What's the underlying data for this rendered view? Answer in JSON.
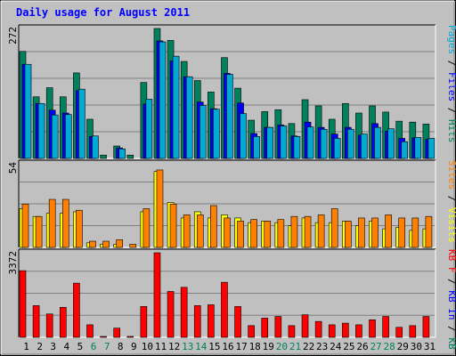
{
  "chart_data": [
    {
      "type": "bar",
      "title": "Daily usage for August 2011",
      "max_label": "272",
      "ylim": [
        0,
        272
      ],
      "grid": true,
      "legend": "right side, vertical",
      "legend_parts": [
        {
          "text": "Pages",
          "color": "#00aad2"
        },
        {
          "text": " / ",
          "color": "#000000"
        },
        {
          "text": "Files",
          "color": "#0000ff"
        },
        {
          "text": " / ",
          "color": "#000000"
        },
        {
          "text": "Hits",
          "color": "#00805c"
        }
      ],
      "categories": [
        "1",
        "2",
        "3",
        "4",
        "5",
        "6",
        "7",
        "8",
        "9",
        "10",
        "11",
        "12",
        "13",
        "14",
        "15",
        "16",
        "17",
        "18",
        "19",
        "20",
        "21",
        "22",
        "23",
        "24",
        "25",
        "26",
        "27",
        "28",
        "29",
        "30",
        "31"
      ],
      "series": [
        {
          "name": "Hits",
          "color": "#00805c",
          "values": [
            224,
            129,
            148,
            129,
            179,
            82,
            7,
            26,
            7,
            159,
            272,
            247,
            203,
            163,
            139,
            211,
            147,
            80,
            98,
            102,
            73,
            123,
            110,
            82,
            115,
            95,
            110,
            97,
            78,
            76,
            72
          ]
        },
        {
          "name": "Files",
          "color": "#0000ff",
          "values": [
            197,
            115,
            101,
            95,
            142,
            46,
            0,
            22,
            0,
            114,
            246,
            204,
            171,
            118,
            104,
            178,
            116,
            52,
            65,
            70,
            47,
            76,
            65,
            51,
            65,
            49,
            73,
            57,
            42,
            43,
            40
          ]
        },
        {
          "name": "Pages",
          "color": "#00aad2",
          "values": [
            197,
            115,
            91,
            92,
            145,
            47,
            0,
            20,
            0,
            124,
            244,
            214,
            171,
            111,
            103,
            176,
            94,
            46,
            65,
            68,
            46,
            66,
            61,
            42,
            61,
            51,
            65,
            62,
            35,
            44,
            42
          ]
        }
      ]
    },
    {
      "type": "bar",
      "max_label": "54",
      "ylim": [
        0,
        54
      ],
      "grid": true,
      "legend": "right side, vertical",
      "legend_parts": [
        {
          "text": "Sites",
          "color": "#ff8000"
        },
        {
          "text": " / ",
          "color": "#000000"
        },
        {
          "text": "Visits",
          "color": "#ffff00"
        }
      ],
      "categories": [
        "1",
        "2",
        "3",
        "4",
        "5",
        "6",
        "7",
        "8",
        "9",
        "10",
        "11",
        "12",
        "13",
        "14",
        "15",
        "16",
        "17",
        "18",
        "19",
        "20",
        "21",
        "22",
        "23",
        "24",
        "25",
        "26",
        "27",
        "28",
        "29",
        "30",
        "31"
      ],
      "series": [
        {
          "name": "Visits",
          "color": "#ffff00",
          "values": [
            25,
            20,
            22,
            22,
            23,
            3,
            2,
            2,
            0,
            23,
            49,
            29,
            19,
            23,
            19,
            21,
            19,
            16,
            17,
            16,
            14,
            19,
            16,
            16,
            17,
            14,
            17,
            12,
            13,
            11,
            12
          ]
        },
        {
          "name": "Sites",
          "color": "#ff8000",
          "values": [
            28,
            20,
            31,
            31,
            24,
            4,
            4,
            5,
            2,
            25,
            50,
            28,
            21,
            21,
            27,
            19,
            17,
            18,
            17,
            18,
            20,
            20,
            21,
            25,
            17,
            19,
            19,
            21,
            19,
            19,
            20
          ]
        }
      ]
    },
    {
      "type": "bar",
      "max_label": "3372",
      "ylim": [
        0,
        3372
      ],
      "grid": true,
      "legend": "right side, vertical",
      "legend_parts": [
        {
          "text": "KB F",
          "color": "#ff0000"
        },
        {
          "text": " / ",
          "color": "#000000"
        },
        {
          "text": "KB In",
          "color": "#0000ff"
        },
        {
          "text": " / ",
          "color": "#000000"
        },
        {
          "text": "KB Out",
          "color": "#00805c"
        }
      ],
      "categories": [
        "1",
        "2",
        "3",
        "4",
        "5",
        "6",
        "7",
        "8",
        "9",
        "10",
        "11",
        "12",
        "13",
        "14",
        "15",
        "16",
        "17",
        "18",
        "19",
        "20",
        "21",
        "22",
        "23",
        "24",
        "25",
        "26",
        "27",
        "28",
        "29",
        "30",
        "31"
      ],
      "series": [
        {
          "name": "KB F",
          "color": "#ff0000",
          "values": [
            2658,
            1264,
            931,
            1197,
            2161,
            499,
            33,
            366,
            33,
            1230,
            3372,
            1828,
            1993,
            1264,
            1297,
            2195,
            1230,
            466,
            765,
            831,
            466,
            898,
            633,
            499,
            565,
            499,
            699,
            831,
            399,
            465,
            831
          ]
        }
      ]
    }
  ],
  "x_axis": {
    "labels": [
      "1",
      "2",
      "3",
      "4",
      "5",
      "6",
      "7",
      "8",
      "9",
      "10",
      "11",
      "12",
      "13",
      "14",
      "15",
      "16",
      "17",
      "18",
      "19",
      "20",
      "21",
      "22",
      "23",
      "24",
      "25",
      "26",
      "27",
      "28",
      "29",
      "30",
      "31"
    ],
    "weekend_color": "#00805c",
    "weekday_color": "#000000",
    "weekend_days": [
      "6",
      "7",
      "13",
      "14",
      "20",
      "21",
      "27",
      "28"
    ]
  }
}
